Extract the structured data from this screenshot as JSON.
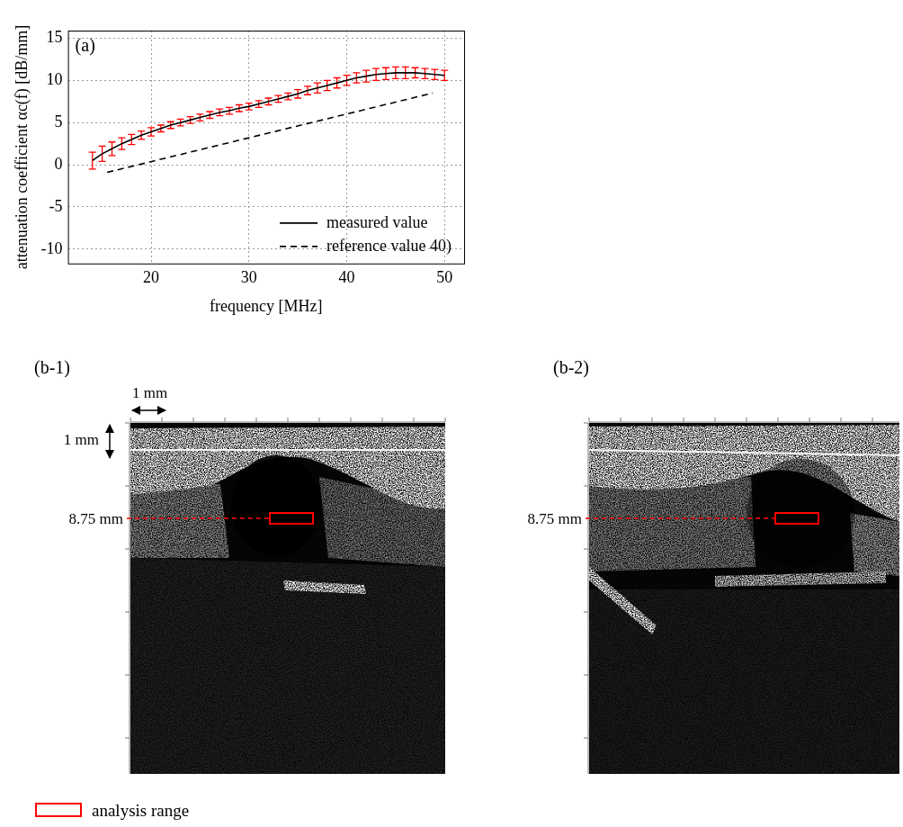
{
  "chart_data": {
    "type": "line",
    "panel_label": "(a)",
    "x_label": "frequency [MHz]",
    "y_label": "attenuation coefficient αc(f) [dB/mm]",
    "xlim": [
      11.5,
      52
    ],
    "xticks": [
      20,
      30,
      40,
      50
    ],
    "ylim": [
      -11.7,
      15.9
    ],
    "yticks": [
      -10,
      -5,
      0,
      5,
      10,
      15
    ],
    "grid": true,
    "legend": "lower right",
    "series": [
      {
        "name": "measured value",
        "color": "#000000",
        "line_style": "solid",
        "x": [
          14,
          15,
          16,
          17,
          18,
          19,
          20,
          21,
          22,
          23,
          24,
          25,
          26,
          27,
          28,
          29,
          30,
          31,
          32,
          33,
          34,
          35,
          36,
          37,
          38,
          39,
          40,
          41,
          42,
          43,
          44,
          45,
          46,
          47,
          48,
          49,
          50
        ],
        "values": [
          0.5,
          1.3,
          1.9,
          2.5,
          3.0,
          3.5,
          3.9,
          4.3,
          4.7,
          5.0,
          5.3,
          5.6,
          5.9,
          6.2,
          6.4,
          6.7,
          6.9,
          7.2,
          7.5,
          7.8,
          8.1,
          8.4,
          8.8,
          9.1,
          9.4,
          9.7,
          10.0,
          10.3,
          10.5,
          10.7,
          10.8,
          10.9,
          10.9,
          10.9,
          10.8,
          10.7,
          10.6
        ],
        "error": [
          1.0,
          0.9,
          0.8,
          0.7,
          0.6,
          0.5,
          0.5,
          0.4,
          0.4,
          0.4,
          0.4,
          0.4,
          0.4,
          0.4,
          0.4,
          0.4,
          0.4,
          0.4,
          0.4,
          0.4,
          0.4,
          0.5,
          0.5,
          0.6,
          0.6,
          0.6,
          0.6,
          0.6,
          0.7,
          0.7,
          0.7,
          0.7,
          0.7,
          0.6,
          0.6,
          0.6,
          0.6
        ]
      },
      {
        "name": "reference value 40)",
        "color": "#000000",
        "line_style": "dashed",
        "x": [
          15.5,
          48.8
        ],
        "values": [
          -0.9,
          8.5
        ]
      }
    ]
  },
  "images": [
    {
      "label": "(b-1)",
      "scale_bars": [
        "1 mm",
        "1 mm"
      ],
      "depth_label": "8.75 mm"
    },
    {
      "label": "(b-2)",
      "depth_label": "8.75 mm"
    }
  ],
  "legend": {
    "label": "analysis range",
    "color": "#ff0000"
  }
}
